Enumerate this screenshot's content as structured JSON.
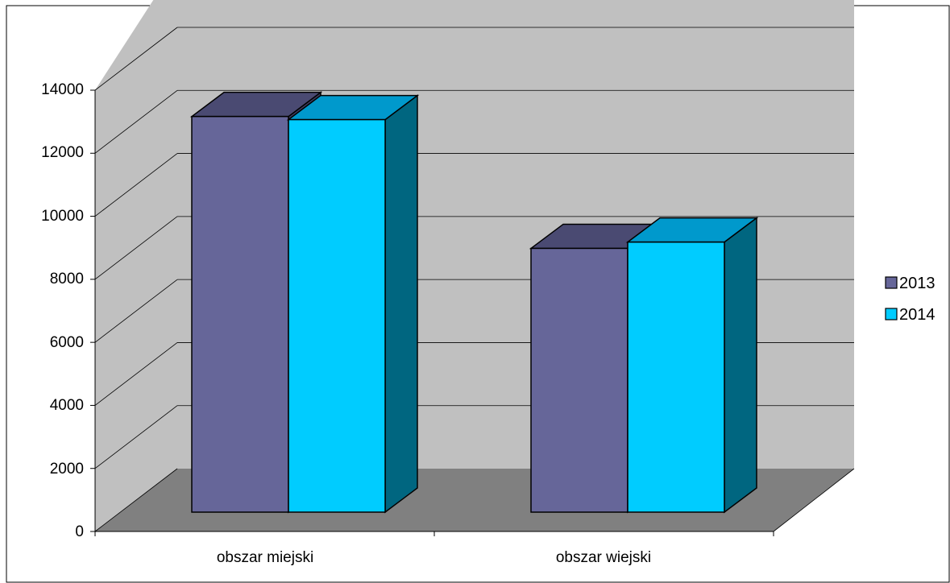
{
  "chart_data": {
    "type": "bar",
    "categories": [
      "obszar miejski",
      "obszar wiejski"
    ],
    "series": [
      {
        "name": "2013",
        "values": [
          12600,
          8400
        ],
        "color": "#666699",
        "top_color": "#4a4a72",
        "side_color": "#3c3c5e"
      },
      {
        "name": "2014",
        "values": [
          12500,
          8600
        ],
        "color": "#00ccff",
        "top_color": "#0099cc",
        "side_color": "#006680"
      }
    ],
    "y_ticks": [
      "0",
      "2000",
      "4000",
      "6000",
      "8000",
      "10000",
      "12000",
      "14000"
    ],
    "ylim": [
      0,
      14000
    ],
    "grid": true,
    "legend": "right",
    "wall_color": "#c0c0c0",
    "floor_color": "#808080"
  }
}
